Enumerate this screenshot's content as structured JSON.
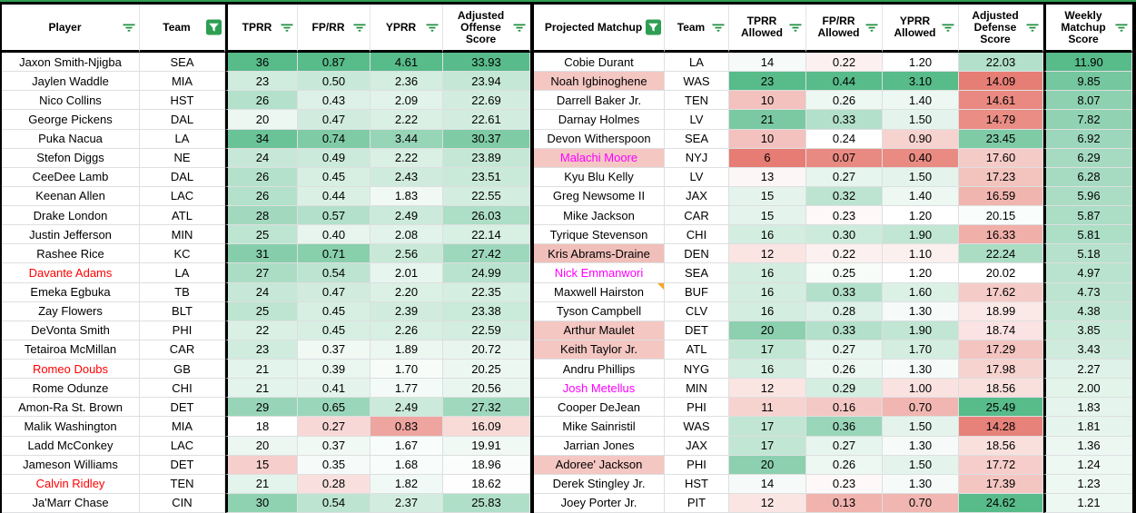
{
  "accent_green": "#2E9E52",
  "scale_colors": {
    "red": "#E67C73",
    "white": "#FFFFFF",
    "green": "#57BB8A"
  },
  "status_colors": {
    "alert_player_text": "#FF0000",
    "highlight_player_text": "#FF00FF",
    "flagged_player_bg": "#F4C7C3",
    "note_marker": "#F5A623"
  },
  "icons": {
    "filter_inactive": "filter-lines-icon",
    "filter_active": "filter-funnel-active-icon",
    "note": "note-corner-icon"
  },
  "left_table": {
    "headers": [
      {
        "label": "Player",
        "filter": "inactive"
      },
      {
        "label": "Team",
        "filter": "active"
      },
      {
        "label": "TPRR",
        "filter": "inactive"
      },
      {
        "label": "FP/RR",
        "filter": "inactive"
      },
      {
        "label": "YPRR",
        "filter": "inactive"
      },
      {
        "label": "Adjusted Offense Score",
        "filter": "inactive"
      }
    ],
    "scales": {
      "tprr": {
        "red_at": 10,
        "white_at": 18,
        "green_at": 36
      },
      "fprr": {
        "red_at": 0.15,
        "white_at": 0.32,
        "green_at": 0.87
      },
      "yprr": {
        "red_at": 0.5,
        "white_at": 1.55,
        "green_at": 4.61
      },
      "aos": {
        "red_at": 10,
        "white_at": 18.5,
        "green_at": 34
      }
    },
    "rows": [
      {
        "player": "Jaxon Smith-Njigba",
        "team": "SEA",
        "tprr": "36",
        "fprr": "0.87",
        "yprr": "4.61",
        "aos": "33.93"
      },
      {
        "player": "Jaylen Waddle",
        "team": "MIA",
        "tprr": "23",
        "fprr": "0.50",
        "yprr": "2.36",
        "aos": "23.94"
      },
      {
        "player": "Nico Collins",
        "team": "HST",
        "tprr": "26",
        "fprr": "0.43",
        "yprr": "2.09",
        "aos": "22.69"
      },
      {
        "player": "George Pickens",
        "team": "DAL",
        "tprr": "20",
        "fprr": "0.47",
        "yprr": "2.22",
        "aos": "22.61"
      },
      {
        "player": "Puka Nacua",
        "team": "LA",
        "tprr": "34",
        "fprr": "0.74",
        "yprr": "3.44",
        "aos": "30.37"
      },
      {
        "player": "Stefon Diggs",
        "team": "NE",
        "tprr": "24",
        "fprr": "0.49",
        "yprr": "2.22",
        "aos": "23.89"
      },
      {
        "player": "CeeDee Lamb",
        "team": "DAL",
        "tprr": "26",
        "fprr": "0.45",
        "yprr": "2.43",
        "aos": "23.51"
      },
      {
        "player": "Keenan Allen",
        "team": "LAC",
        "tprr": "26",
        "fprr": "0.44",
        "yprr": "1.83",
        "aos": "22.55"
      },
      {
        "player": "Drake London",
        "team": "ATL",
        "tprr": "28",
        "fprr": "0.57",
        "yprr": "2.49",
        "aos": "26.03"
      },
      {
        "player": "Justin Jefferson",
        "team": "MIN",
        "tprr": "25",
        "fprr": "0.40",
        "yprr": "2.08",
        "aos": "22.14"
      },
      {
        "player": "Rashee Rice",
        "team": "KC",
        "tprr": "31",
        "fprr": "0.71",
        "yprr": "2.56",
        "aos": "27.42"
      },
      {
        "player": "Davante Adams",
        "player_color": "#FF0000",
        "team": "LA",
        "tprr": "27",
        "fprr": "0.54",
        "yprr": "2.01",
        "aos": "24.99"
      },
      {
        "player": "Emeka Egbuka",
        "team": "TB",
        "tprr": "24",
        "fprr": "0.47",
        "yprr": "2.20",
        "aos": "22.35"
      },
      {
        "player": "Zay Flowers",
        "team": "BLT",
        "tprr": "25",
        "fprr": "0.45",
        "yprr": "2.39",
        "aos": "23.38"
      },
      {
        "player": "DeVonta Smith",
        "team": "PHI",
        "tprr": "22",
        "fprr": "0.45",
        "yprr": "2.26",
        "aos": "22.59"
      },
      {
        "player": "Tetairoa McMillan",
        "team": "CAR",
        "tprr": "23",
        "fprr": "0.37",
        "yprr": "1.89",
        "aos": "20.72"
      },
      {
        "player": "Romeo Doubs",
        "player_color": "#FF0000",
        "team": "GB",
        "tprr": "21",
        "fprr": "0.39",
        "yprr": "1.70",
        "aos": "20.25"
      },
      {
        "player": "Rome Odunze",
        "team": "CHI",
        "tprr": "21",
        "fprr": "0.41",
        "yprr": "1.77",
        "aos": "20.56"
      },
      {
        "player": "Amon-Ra St. Brown",
        "team": "DET",
        "tprr": "29",
        "fprr": "0.65",
        "yprr": "2.49",
        "aos": "27.32"
      },
      {
        "player": "Malik Washington",
        "team": "MIA",
        "tprr": "18",
        "fprr": "0.27",
        "yprr": "0.83",
        "aos": "16.09"
      },
      {
        "player": "Ladd McConkey",
        "team": "LAC",
        "tprr": "20",
        "fprr": "0.37",
        "yprr": "1.67",
        "aos": "19.91"
      },
      {
        "player": "Jameson Williams",
        "team": "DET",
        "tprr": "15",
        "fprr": "0.35",
        "yprr": "1.68",
        "aos": "18.96"
      },
      {
        "player": "Calvin Ridley",
        "player_color": "#FF0000",
        "team": "TEN",
        "tprr": "21",
        "fprr": "0.28",
        "yprr": "1.82",
        "aos": "18.62"
      },
      {
        "player": "Ja'Marr Chase",
        "team": "CIN",
        "tprr": "30",
        "fprr": "0.54",
        "yprr": "2.37",
        "aos": "25.83"
      }
    ]
  },
  "right_table": {
    "headers": [
      {
        "label": "Projected Matchup",
        "filter": "active"
      },
      {
        "label": "Team",
        "filter": "inactive"
      },
      {
        "label": "TPRR Allowed",
        "filter": "inactive"
      },
      {
        "label": "FP/RR Allowed",
        "filter": "inactive"
      },
      {
        "label": "YPRR Allowed",
        "filter": "inactive"
      },
      {
        "label": "Adjusted Defense Score",
        "filter": "inactive"
      },
      {
        "label": "Weekly Matchup Score",
        "filter": "inactive"
      }
    ],
    "scales": {
      "tprr": {
        "red_at": 6,
        "white_at": 13.5,
        "green_at": 23
      },
      "fprr": {
        "red_at": 0.05,
        "white_at": 0.24,
        "green_at": 0.44
      },
      "yprr": {
        "red_at": 0.3,
        "white_at": 1.2,
        "green_at": 3.1
      },
      "ads": {
        "red_at": 14,
        "white_at": 20,
        "green_at": 24.5
      },
      "wms": {
        "red_at": -8,
        "white_at": 0,
        "green_at": 11.9
      }
    },
    "rows": [
      {
        "player": "Cobie Durant",
        "team": "LA",
        "tprr": "14",
        "fprr": "0.22",
        "yprr": "1.20",
        "ads": "22.03",
        "wms": "11.90"
      },
      {
        "player": "Noah Igbinoghene",
        "player_bg": "#F4C7C3",
        "team": "WAS",
        "tprr": "23",
        "fprr": "0.44",
        "yprr": "3.10",
        "ads": "14.09",
        "wms": "9.85"
      },
      {
        "player": "Darrell Baker Jr.",
        "team": "TEN",
        "tprr": "10",
        "fprr": "0.26",
        "yprr": "1.40",
        "ads": "14.61",
        "wms": "8.07"
      },
      {
        "player": "Darnay Holmes",
        "team": "LV",
        "tprr": "21",
        "fprr": "0.33",
        "yprr": "1.50",
        "ads": "14.79",
        "wms": "7.82"
      },
      {
        "player": "Devon Witherspoon",
        "team": "SEA",
        "tprr": "10",
        "fprr": "0.24",
        "yprr": "0.90",
        "ads": "23.45",
        "wms": "6.92"
      },
      {
        "player": "Malachi Moore",
        "player_bg": "#F4C7C3",
        "player_color": "#FF00FF",
        "team": "NYJ",
        "tprr": "6",
        "fprr": "0.07",
        "yprr": "0.40",
        "ads": "17.60",
        "wms": "6.29"
      },
      {
        "player": "Kyu Blu Kelly",
        "team": "LV",
        "tprr": "13",
        "fprr": "0.27",
        "yprr": "1.50",
        "ads": "17.23",
        "wms": "6.28"
      },
      {
        "player": "Greg Newsome II",
        "team": "JAX",
        "tprr": "15",
        "fprr": "0.32",
        "yprr": "1.40",
        "ads": "16.59",
        "wms": "5.96"
      },
      {
        "player": "Mike Jackson",
        "team": "CAR",
        "tprr": "15",
        "fprr": "0.23",
        "yprr": "1.20",
        "ads": "20.15",
        "wms": "5.87"
      },
      {
        "player": "Tyrique Stevenson",
        "team": "CHI",
        "tprr": "16",
        "fprr": "0.30",
        "yprr": "1.90",
        "ads": "16.33",
        "wms": "5.81"
      },
      {
        "player": "Kris Abrams-Draine",
        "player_bg": "#F1BFBA",
        "team": "DEN",
        "tprr": "12",
        "fprr": "0.22",
        "yprr": "1.10",
        "ads": "22.24",
        "wms": "5.18"
      },
      {
        "player": "Nick Emmanwori",
        "player_color": "#FF00FF",
        "team": "SEA",
        "tprr": "16",
        "fprr": "0.25",
        "yprr": "1.20",
        "ads": "20.02",
        "wms": "4.97"
      },
      {
        "player": "Maxwell Hairston",
        "note": true,
        "team": "BUF",
        "tprr": "16",
        "fprr": "0.33",
        "yprr": "1.60",
        "ads": "17.62",
        "wms": "4.73"
      },
      {
        "player": "Tyson Campbell",
        "team": "CLV",
        "tprr": "16",
        "fprr": "0.28",
        "yprr": "1.30",
        "ads": "18.99",
        "wms": "4.38"
      },
      {
        "player": "Arthur Maulet",
        "player_bg": "#F4C7C3",
        "team": "DET",
        "tprr": "20",
        "fprr": "0.33",
        "yprr": "1.90",
        "ads": "18.74",
        "wms": "3.85"
      },
      {
        "player": "Keith Taylor Jr.",
        "player_bg": "#F4C7C3",
        "team": "ATL",
        "tprr": "17",
        "fprr": "0.27",
        "yprr": "1.70",
        "ads": "17.29",
        "wms": "3.43"
      },
      {
        "player": "Andru Phillips",
        "team": "NYG",
        "tprr": "16",
        "fprr": "0.26",
        "yprr": "1.30",
        "ads": "17.98",
        "wms": "2.27"
      },
      {
        "player": "Josh Metellus",
        "player_color": "#FF00FF",
        "team": "MIN",
        "tprr": "12",
        "fprr": "0.29",
        "yprr": "1.00",
        "ads": "18.56",
        "wms": "2.00"
      },
      {
        "player": "Cooper DeJean",
        "team": "PHI",
        "tprr": "11",
        "fprr": "0.16",
        "yprr": "0.70",
        "ads": "25.49",
        "wms": "1.83"
      },
      {
        "player": "Mike Sainristil",
        "team": "WAS",
        "tprr": "17",
        "fprr": "0.36",
        "yprr": "1.50",
        "ads": "14.28",
        "wms": "1.81"
      },
      {
        "player": "Jarrian Jones",
        "team": "JAX",
        "tprr": "17",
        "fprr": "0.27",
        "yprr": "1.30",
        "ads": "18.56",
        "wms": "1.36"
      },
      {
        "player": "Adoree' Jackson",
        "player_bg": "#F4C7C3",
        "team": "PHI",
        "tprr": "20",
        "fprr": "0.26",
        "yprr": "1.50",
        "ads": "17.72",
        "wms": "1.24"
      },
      {
        "player": "Derek Stingley Jr.",
        "team": "HST",
        "tprr": "14",
        "fprr": "0.23",
        "yprr": "1.30",
        "ads": "17.39",
        "wms": "1.23"
      },
      {
        "player": "Joey Porter Jr.",
        "team": "PIT",
        "tprr": "12",
        "fprr": "0.13",
        "yprr": "0.70",
        "ads": "24.62",
        "wms": "1.21"
      }
    ]
  }
}
